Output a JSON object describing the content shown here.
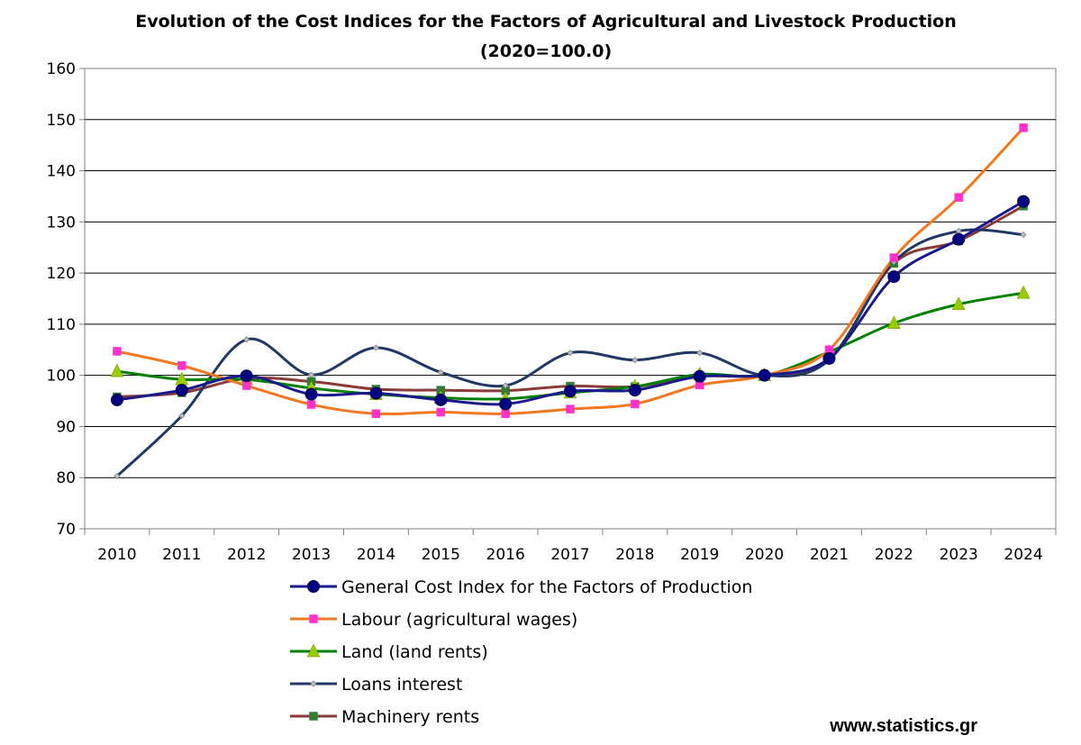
{
  "chart_data": {
    "type": "line",
    "title": "Evolution of the Cost Indices for the Factors of Agricultural and Livestock Production",
    "subtitle": "(2020=100.0)",
    "xlabel": "",
    "ylabel": "",
    "categories": [
      "2010",
      "2011",
      "2012",
      "2013",
      "2014",
      "2015",
      "2016",
      "2017",
      "2018",
      "2019",
      "2020",
      "2021",
      "2022",
      "2023",
      "2024"
    ],
    "ylim": [
      70,
      160
    ],
    "yticks": [
      70,
      80,
      90,
      100,
      110,
      120,
      130,
      140,
      150,
      160
    ],
    "grid": true,
    "legend_position": "bottom",
    "series": [
      {
        "name": "General Cost Index for the Factors of Production",
        "color": "#1a1a8c",
        "marker": "circle",
        "marker_color": "#000080",
        "values": [
          95.2,
          97.1,
          99.9,
          96.3,
          96.5,
          95.2,
          94.4,
          96.9,
          97.1,
          99.8,
          100.0,
          103.3,
          119.3,
          126.6,
          134.0
        ]
      },
      {
        "name": "Labour (agricultural wages)",
        "color": "#f07820",
        "marker": "square",
        "marker_color": "#ff33cc",
        "values": [
          104.7,
          101.9,
          98.0,
          94.3,
          92.5,
          92.8,
          92.5,
          93.4,
          94.4,
          98.1,
          100.0,
          105.0,
          123.0,
          134.8,
          148.4
        ]
      },
      {
        "name": "Land (land rents)",
        "color": "#008000",
        "marker": "triangle",
        "marker_color": "#99cc00",
        "values": [
          100.8,
          99.2,
          99.2,
          97.5,
          96.3,
          95.6,
          95.4,
          96.6,
          97.8,
          100.2,
          100.0,
          104.6,
          110.2,
          113.9,
          116.1
        ]
      },
      {
        "name": "Loans interest",
        "color": "#1f3864",
        "marker": "diamond",
        "marker_color": "#c0c0c0",
        "values": [
          80.3,
          92.1,
          107.0,
          100.1,
          105.4,
          100.6,
          98.0,
          104.4,
          103.0,
          104.4,
          100.0,
          103.0,
          122.2,
          128.2,
          127.5
        ]
      },
      {
        "name": "Machinery rents",
        "color": "#8b3a3a",
        "marker": "square",
        "marker_color": "#2e7d32",
        "values": [
          95.8,
          96.6,
          99.4,
          98.8,
          97.3,
          97.1,
          97.0,
          97.9,
          97.8,
          99.8,
          100.0,
          103.2,
          121.9,
          126.3,
          133.1
        ]
      }
    ]
  },
  "source": "www.statistics.gr"
}
